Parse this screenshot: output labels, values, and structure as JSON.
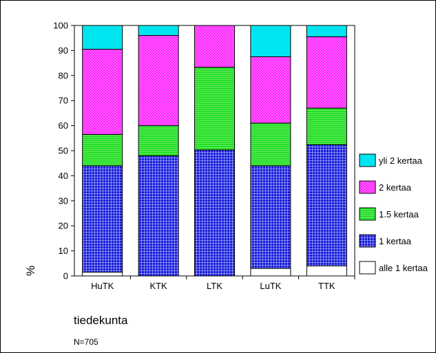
{
  "chart_data": {
    "type": "bar",
    "stacked": true,
    "categories": [
      "HuTK",
      "KTK",
      "LTK",
      "LuTK",
      "TTK"
    ],
    "series": [
      {
        "name": "alle 1 kertaa",
        "values": [
          1.5,
          0,
          0,
          3,
          4
        ],
        "color": "#ffffff",
        "pattern": "none"
      },
      {
        "name": "1 kertaa",
        "values": [
          42.5,
          48,
          50.3,
          41,
          48.4
        ],
        "color": "#1a1ad6",
        "pattern": "grid"
      },
      {
        "name": "1.5 kertaa",
        "values": [
          12.5,
          12,
          33,
          17,
          14.6
        ],
        "color": "#22dd22",
        "pattern": "hlines"
      },
      {
        "name": "2 kertaa",
        "values": [
          34,
          36,
          16.7,
          26.5,
          28.5
        ],
        "color": "#ff33ff",
        "pattern": "dots"
      },
      {
        "name": "yli 2 kertaa",
        "values": [
          9.5,
          4,
          0,
          12.5,
          4.5
        ],
        "color": "#00e6f0",
        "pattern": "none"
      }
    ],
    "ylim": [
      0,
      100
    ],
    "yticks": [
      0,
      10,
      20,
      30,
      40,
      50,
      60,
      70,
      80,
      90,
      100
    ],
    "ylabel": "%",
    "xlabel": "tiedekunta",
    "note": "N=705",
    "legend_position": "right",
    "legend_order": [
      "yli 2 kertaa",
      "2 kertaa",
      "1.5 kertaa",
      "1 kertaa",
      "alle 1 kertaa"
    ]
  }
}
